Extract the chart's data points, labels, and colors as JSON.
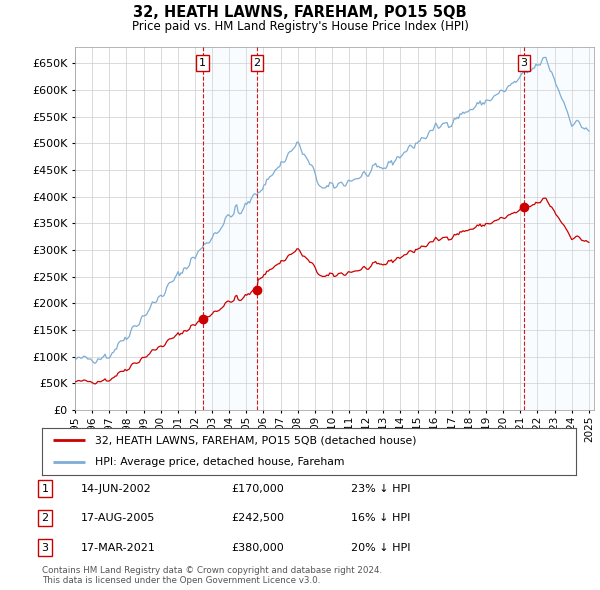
{
  "title": "32, HEATH LAWNS, FAREHAM, PO15 5QB",
  "subtitle": "Price paid vs. HM Land Registry's House Price Index (HPI)",
  "ylim": [
    0,
    680000
  ],
  "xlim_start": 1995.0,
  "xlim_end": 2025.3,
  "legend_line1": "32, HEATH LAWNS, FAREHAM, PO15 5QB (detached house)",
  "legend_line2": "HPI: Average price, detached house, Fareham",
  "transactions": [
    {
      "num": 1,
      "date": "14-JUN-2002",
      "price": 170000,
      "pct": "23% ↓ HPI",
      "year": 2002.45
    },
    {
      "num": 2,
      "date": "17-AUG-2005",
      "price": 242500,
      "pct": "16% ↓ HPI",
      "year": 2005.62
    },
    {
      "num": 3,
      "date": "17-MAR-2021",
      "price": 380000,
      "pct": "20% ↓ HPI",
      "year": 2021.21
    }
  ],
  "footer": "Contains HM Land Registry data © Crown copyright and database right 2024.\nThis data is licensed under the Open Government Licence v3.0.",
  "hpi_color": "#7dadd4",
  "price_color": "#cc0000",
  "shade_color": "#ddeeff",
  "transaction_line_color": "#cc0000",
  "background_chart": "#ffffff",
  "grid_color": "#cccccc"
}
